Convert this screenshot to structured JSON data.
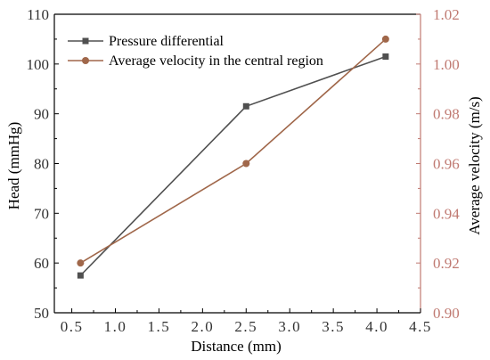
{
  "chart_data": {
    "type": "line",
    "xlabel": "Distance (mm)",
    "ylabel_left": "Head (mmHg)",
    "ylabel_right": "Average velocity (m/s)",
    "xlim": [
      0.3,
      4.5
    ],
    "ylim_left": [
      50,
      110
    ],
    "ylim_right": [
      0.9,
      1.02
    ],
    "x_ticks": [
      "0.5",
      "1.0",
      "1.5",
      "2.0",
      "2.5",
      "3.0",
      "3.5",
      "4.0",
      "4.5"
    ],
    "y_left_ticks": [
      "50",
      "60",
      "70",
      "80",
      "90",
      "100",
      "110"
    ],
    "y_right_ticks": [
      "0.90",
      "0.92",
      "0.94",
      "0.96",
      "0.98",
      "1.00",
      "1.02"
    ],
    "grid": false,
    "legend_position": "top-left",
    "series": [
      {
        "name": "Pressure differential",
        "axis": "left",
        "color": "#505050",
        "marker": "square",
        "x": [
          0.6,
          2.5,
          4.1
        ],
        "y": [
          57.5,
          91.5,
          101.5
        ]
      },
      {
        "name": "Average velocity in the central region",
        "axis": "right",
        "color": "#a0674a",
        "marker": "circle",
        "x": [
          0.6,
          2.5,
          4.1
        ],
        "y": [
          0.92,
          0.96,
          1.01
        ]
      }
    ],
    "colors": {
      "right_axis": "#c07a72"
    }
  }
}
